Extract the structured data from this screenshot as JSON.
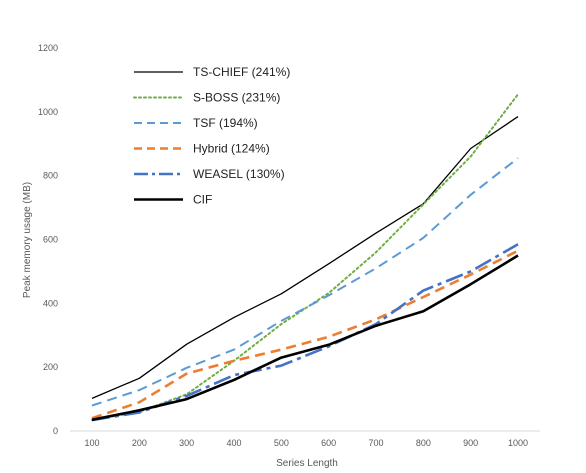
{
  "chart_data": {
    "type": "line",
    "xlabel": "Series Length",
    "ylabel": "Peak memory usage (MB)",
    "x": [
      100,
      200,
      300,
      400,
      500,
      600,
      700,
      800,
      900,
      1000
    ],
    "ylim": [
      0,
      1200
    ],
    "yticks": [
      0,
      200,
      400,
      600,
      800,
      1000,
      1200
    ],
    "grid": false,
    "legend_position": "top-left",
    "series": [
      {
        "name": "TS-CHIEF (241%)",
        "color": "#000000",
        "dash": "solid",
        "weight": "thin",
        "values": [
          102,
          165,
          272,
          356,
          430,
          524,
          620,
          712,
          885,
          985
        ]
      },
      {
        "name": "S-BOSS (231%)",
        "color": "#70ad47",
        "dash": "dotted",
        "weight": "medium",
        "values": [
          35,
          60,
          115,
          220,
          335,
          432,
          560,
          710,
          860,
          1055
        ]
      },
      {
        "name": "TSF (194%)",
        "color": "#5b9bd5",
        "dash": "dashed",
        "weight": "medium",
        "values": [
          80,
          128,
          198,
          255,
          345,
          425,
          510,
          605,
          740,
          855
        ]
      },
      {
        "name": "Hybrid (124%)",
        "color": "#ed7d31",
        "dash": "dashed",
        "weight": "thick",
        "values": [
          40,
          90,
          180,
          220,
          255,
          295,
          350,
          420,
          490,
          565
        ]
      },
      {
        "name": "WEASEL (130%)",
        "color": "#4472c4",
        "dash": "dashdot",
        "weight": "thick",
        "values": [
          34,
          58,
          110,
          175,
          205,
          265,
          335,
          440,
          500,
          585
        ]
      },
      {
        "name": "CIF",
        "color": "#000000",
        "dash": "solid",
        "weight": "thick",
        "values": [
          35,
          65,
          100,
          160,
          230,
          270,
          330,
          375,
          460,
          550
        ]
      }
    ]
  }
}
